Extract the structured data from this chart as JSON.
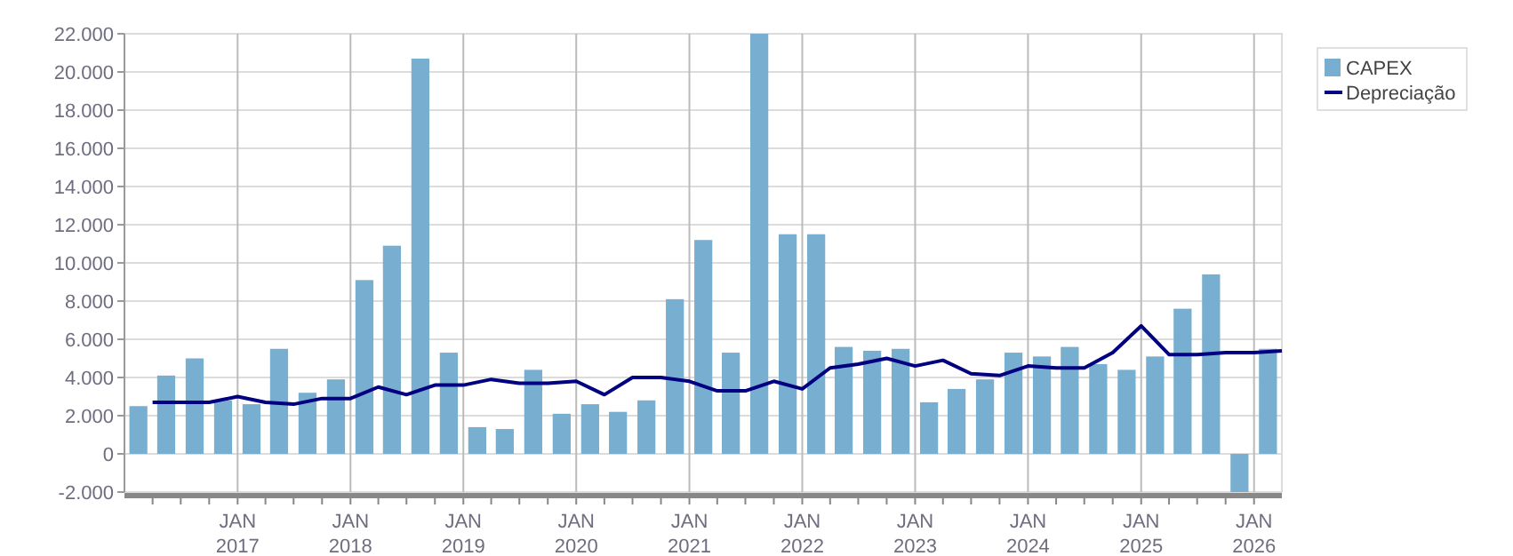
{
  "chart_data": {
    "type": "bar",
    "xlim": [
      "2016-01-01",
      "2026-04-01"
    ],
    "xticks": [
      {
        "value": "2016-04-01",
        "label": null
      },
      {
        "value": "2016-07-01",
        "label": null
      },
      {
        "value": "2016-10-01",
        "label": null
      },
      {
        "value": "2017-01-01",
        "label": "JAN\n2017"
      },
      {
        "value": "2017-04-01",
        "label": null
      },
      {
        "value": "2017-07-01",
        "label": null
      },
      {
        "value": "2017-10-01",
        "label": null
      },
      {
        "value": "2018-01-01",
        "label": "JAN\n2018"
      },
      {
        "value": "2018-04-01",
        "label": null
      },
      {
        "value": "2018-07-01",
        "label": null
      },
      {
        "value": "2018-10-01",
        "label": null
      },
      {
        "value": "2019-01-01",
        "label": "JAN\n2019"
      },
      {
        "value": "2019-04-01",
        "label": null
      },
      {
        "value": "2019-07-01",
        "label": null
      },
      {
        "value": "2019-10-01",
        "label": null
      },
      {
        "value": "2020-01-01",
        "label": "JAN\n2020"
      },
      {
        "value": "2020-04-01",
        "label": null
      },
      {
        "value": "2020-07-01",
        "label": null
      },
      {
        "value": "2020-10-01",
        "label": null
      },
      {
        "value": "2021-01-01",
        "label": "JAN\n2021"
      },
      {
        "value": "2021-04-01",
        "label": null
      },
      {
        "value": "2021-07-01",
        "label": null
      },
      {
        "value": "2021-10-01",
        "label": null
      },
      {
        "value": "2022-01-01",
        "label": "JAN\n2022"
      },
      {
        "value": "2022-04-01",
        "label": null
      },
      {
        "value": "2022-07-01",
        "label": null
      },
      {
        "value": "2022-10-01",
        "label": null
      },
      {
        "value": "2023-01-01",
        "label": "JAN\n2023"
      },
      {
        "value": "2023-04-01",
        "label": null
      },
      {
        "value": "2023-07-01",
        "label": null
      },
      {
        "value": "2023-10-01",
        "label": null
      },
      {
        "value": "2024-01-01",
        "label": "JAN\n2024"
      },
      {
        "value": "2024-04-01",
        "label": null
      },
      {
        "value": "2024-07-01",
        "label": null
      },
      {
        "value": "2024-10-01",
        "label": null
      },
      {
        "value": "2025-01-01",
        "label": "JAN\n2025"
      },
      {
        "value": "2025-04-01",
        "label": null
      },
      {
        "value": "2025-07-01",
        "label": null
      },
      {
        "value": "2025-10-01",
        "label": null
      },
      {
        "value": "2026-01-01",
        "label": "JAN\n2026"
      }
    ],
    "ylim": [
      -2000,
      22000
    ],
    "yticks": [
      {
        "value": -2000,
        "label": "-2.000"
      },
      0,
      {
        "value": 2000,
        "label": "2.000"
      },
      {
        "value": 4000,
        "label": "4.000"
      },
      {
        "value": 6000,
        "label": "6.000"
      },
      {
        "value": 8000,
        "label": "8.000"
      },
      {
        "value": 10000,
        "label": "10.000"
      },
      {
        "value": 12000,
        "label": "12.000"
      },
      {
        "value": 14000,
        "label": "14.000"
      },
      {
        "value": 16000,
        "label": "16.000"
      },
      {
        "value": 18000,
        "label": "18.000"
      },
      {
        "value": 20000,
        "label": "20.000"
      },
      {
        "value": 22000,
        "label": "22.000"
      }
    ],
    "grid": true,
    "legend": "right",
    "series": [
      {
        "name": "CAPEX",
        "color": "#78afd1",
        "x": [
          "2016-02-15",
          "2016-05-15",
          "2016-08-15",
          "2016-11-15",
          "2017-02-15",
          "2017-05-15",
          "2017-08-15",
          "2017-11-15",
          "2018-02-15",
          "2018-05-15",
          "2018-08-15",
          "2018-11-15",
          "2019-02-15",
          "2019-05-15",
          "2019-08-15",
          "2019-11-15",
          "2020-02-15",
          "2020-05-15",
          "2020-08-15",
          "2020-11-15",
          "2021-02-15",
          "2021-05-15",
          "2021-08-15",
          "2021-11-15",
          "2022-02-15",
          "2022-05-15",
          "2022-08-15",
          "2022-11-15",
          "2023-02-15",
          "2023-05-15",
          "2023-08-15",
          "2023-11-15",
          "2024-02-15",
          "2024-05-15",
          "2024-08-15",
          "2024-11-15",
          "2025-02-15",
          "2025-05-15",
          "2025-08-15",
          "2025-11-15",
          "2026-02-15"
        ],
        "values": [
          2500,
          4100,
          5000,
          2800,
          2600,
          5500,
          3200,
          3900,
          9100,
          10900,
          20700,
          5300,
          1400,
          1300,
          4400,
          2100,
          2600,
          2200,
          2800,
          8100,
          11200,
          5300,
          22000,
          11500,
          11500,
          5600,
          5400,
          5500,
          2700,
          3400,
          3900,
          5300,
          5100,
          5600,
          4700,
          4400,
          5100,
          7600,
          9400,
          -2000,
          5500
        ]
      },
      {
        "name": "Depreciação",
        "type": "line",
        "color": "#000080",
        "x": [
          "2016-04-01",
          "2016-07-01",
          "2016-10-01",
          "2017-01-01",
          "2017-04-01",
          "2017-07-01",
          "2017-10-01",
          "2018-01-01",
          "2018-04-01",
          "2018-07-01",
          "2018-10-01",
          "2019-01-01",
          "2019-04-01",
          "2019-07-01",
          "2019-10-01",
          "2020-01-01",
          "2020-04-01",
          "2020-07-01",
          "2020-10-01",
          "2021-01-01",
          "2021-04-01",
          "2021-07-01",
          "2021-10-01",
          "2022-01-01",
          "2022-04-01",
          "2022-07-01",
          "2022-10-01",
          "2023-01-01",
          "2023-04-01",
          "2023-07-01",
          "2023-10-01",
          "2024-01-01",
          "2024-04-01",
          "2024-07-01",
          "2024-10-01",
          "2025-01-01",
          "2025-04-01",
          "2025-07-01",
          "2025-10-01",
          "2026-01-01",
          "2026-04-01"
        ],
        "values": [
          2700,
          2700,
          2700,
          3000,
          2700,
          2600,
          2900,
          2900,
          3500,
          3100,
          3600,
          3600,
          3900,
          3700,
          3700,
          3800,
          3100,
          4000,
          4000,
          3800,
          3300,
          3300,
          3800,
          3400,
          4500,
          4700,
          5000,
          4600,
          4900,
          4200,
          4100,
          4600,
          4500,
          4500,
          5300,
          6700,
          5200,
          5200,
          5300,
          5300,
          5400
        ]
      }
    ]
  }
}
